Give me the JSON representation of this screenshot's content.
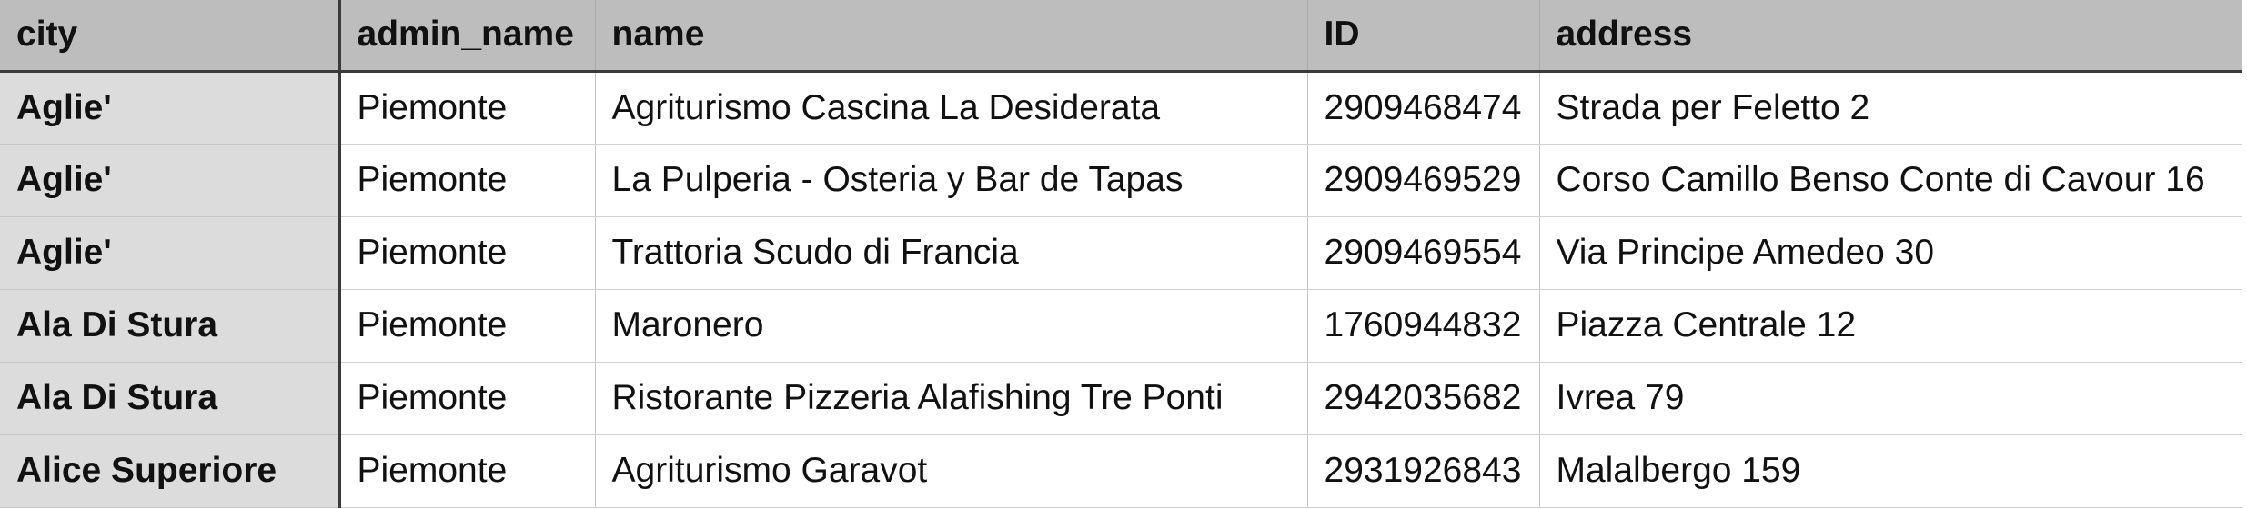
{
  "table": {
    "columns": [
      "city",
      "admin_name",
      "name",
      "ID",
      "address"
    ],
    "rows": [
      [
        "Aglie'",
        "Piemonte",
        "Agriturismo Cascina La Desiderata",
        "2909468474",
        "Strada per Feletto 2"
      ],
      [
        "Aglie'",
        "Piemonte",
        "La Pulperia - Osteria y Bar de Tapas",
        "2909469529",
        "Corso Camillo Benso Conte di Cavour 16"
      ],
      [
        "Aglie'",
        "Piemonte",
        "Trattoria Scudo di Francia",
        "2909469554",
        "Via Principe Amedeo 30"
      ],
      [
        "Ala Di Stura",
        "Piemonte",
        "Maronero",
        "1760944832",
        "Piazza Centrale 12"
      ],
      [
        "Ala Di Stura",
        "Piemonte",
        "Ristorante Pizzeria Alafishing Tre Ponti",
        "2942035682",
        "Ivrea 79"
      ],
      [
        "Alice Superiore",
        "Piemonte",
        "Agriturismo Garavot",
        "2931926843",
        "Malalbergo 159"
      ]
    ]
  },
  "colors": {
    "header_bg": "#bdbdbd",
    "row_header_bg": "#dcdcdc",
    "cell_bg": "#ffffff",
    "frozen_divider": "#3a3a3a",
    "grid_line": "#d0d0d0"
  }
}
